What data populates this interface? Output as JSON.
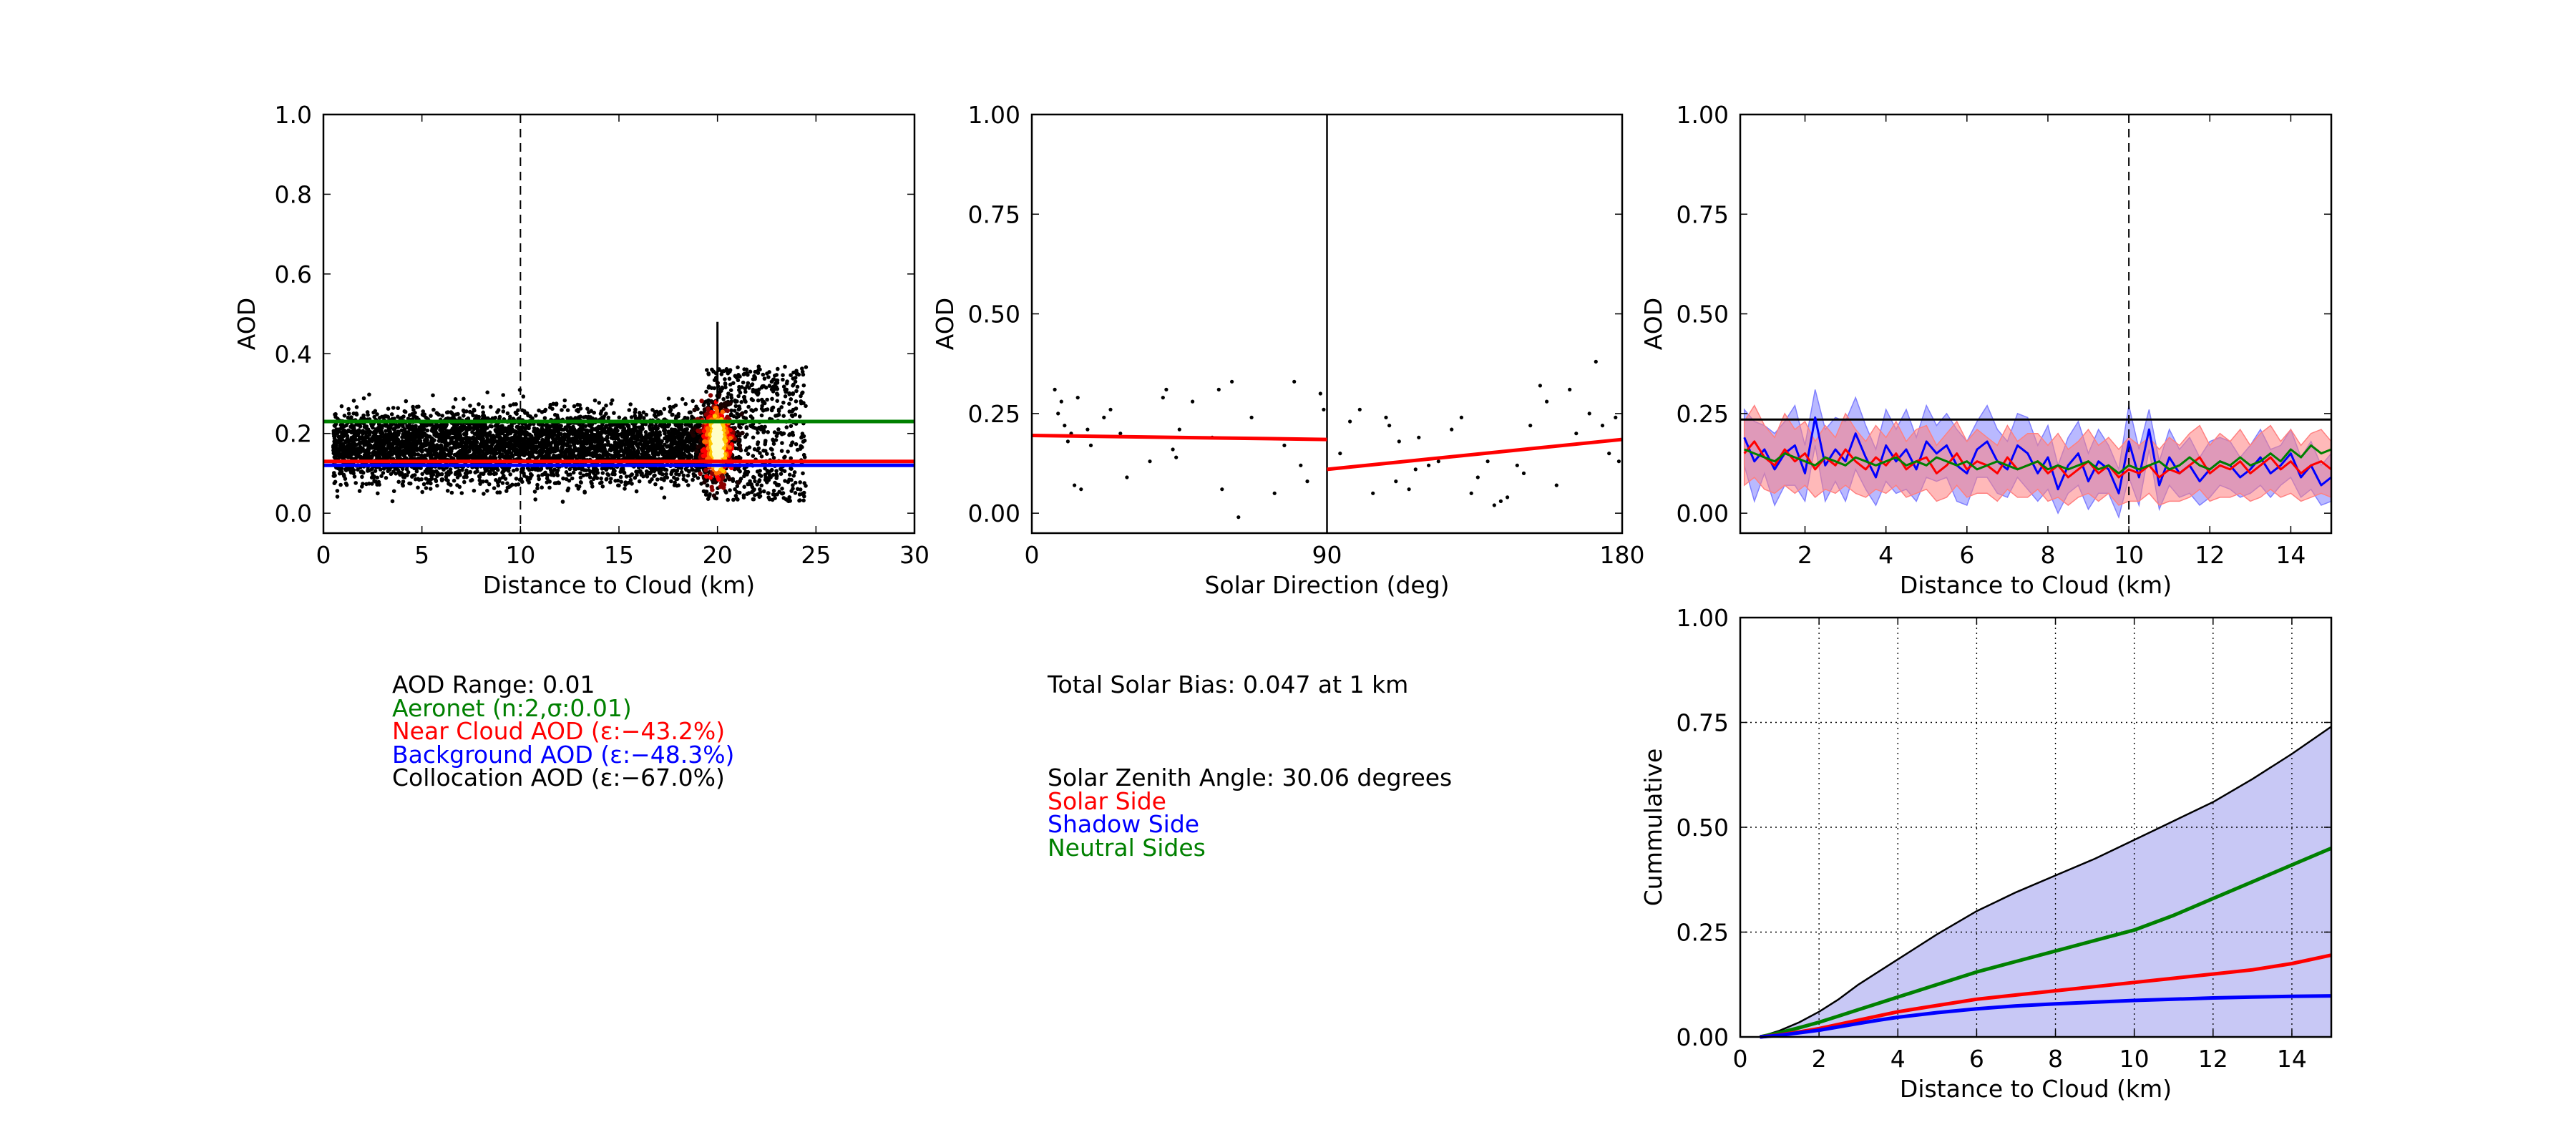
{
  "colors": {
    "black": "#000000",
    "green": "#008000",
    "red": "#ff0000",
    "blue": "#0000ff",
    "red_fill": "#ff8080",
    "blue_fill": "#8080ff",
    "cumulative_fill": "#c8c8f5"
  },
  "chart_data": [
    {
      "id": "scatter",
      "type": "scatter",
      "title": "",
      "xlabel": "Distance to Cloud (km)",
      "ylabel": "AOD",
      "xlim": [
        0,
        30
      ],
      "ylim": [
        -0.05,
        1.0
      ],
      "xticks": [
        "0",
        "5",
        "10",
        "15",
        "20",
        "25",
        "30"
      ],
      "yticks": [
        "0.0",
        "0.2",
        "0.4",
        "0.6",
        "0.8",
        "1.0"
      ],
      "grid": false,
      "vertical_dashed_line": 10,
      "horizontal_lines": [
        {
          "name": "Aeronet",
          "color": "#008000",
          "y": 0.23
        },
        {
          "name": "Near Cloud AOD",
          "color": "#ff0000",
          "y": 0.13
        },
        {
          "name": "Background AOD",
          "color": "#0000ff",
          "y": 0.12
        }
      ],
      "point_cloud": {
        "x_range": [
          0.5,
          24.5
        ],
        "y_range": [
          -0.05,
          0.47
        ],
        "y_center": 0.17,
        "dense_x": 20,
        "dense_y": [
          0.05,
          0.3
        ],
        "spike_x": 20,
        "spike_y": [
          0.28,
          0.48
        ],
        "approx_points": 4500
      }
    },
    {
      "id": "solar",
      "type": "scatter",
      "title": "",
      "xlabel": "Solar Direction (deg)",
      "ylabel": "AOD",
      "xlim": [
        0,
        180
      ],
      "ylim": [
        -0.05,
        1.0
      ],
      "xticks": [
        "0",
        "90",
        "180"
      ],
      "yticks": [
        "0.00",
        "0.25",
        "0.50",
        "0.75",
        "1.00"
      ],
      "grid": false,
      "vertical_line": 90,
      "points": [
        [
          7,
          0.31
        ],
        [
          8,
          0.25
        ],
        [
          9,
          0.28
        ],
        [
          10,
          0.22
        ],
        [
          11,
          0.18
        ],
        [
          12,
          0.2
        ],
        [
          13,
          0.07
        ],
        [
          14,
          0.29
        ],
        [
          15,
          0.06
        ],
        [
          17,
          0.21
        ],
        [
          18,
          0.17
        ],
        [
          22,
          0.24
        ],
        [
          24,
          0.26
        ],
        [
          27,
          0.2
        ],
        [
          29,
          0.09
        ],
        [
          36,
          0.13
        ],
        [
          40,
          0.29
        ],
        [
          41,
          0.31
        ],
        [
          43,
          0.16
        ],
        [
          44,
          0.14
        ],
        [
          45,
          0.21
        ],
        [
          49,
          0.28
        ],
        [
          55,
          0.19
        ],
        [
          57,
          0.31
        ],
        [
          58,
          0.06
        ],
        [
          61,
          0.33
        ],
        [
          63,
          -0.01
        ],
        [
          67,
          0.24
        ],
        [
          74,
          0.05
        ],
        [
          77,
          0.17
        ],
        [
          80,
          0.33
        ],
        [
          82,
          0.12
        ],
        [
          84,
          0.08
        ],
        [
          88,
          0.3
        ],
        [
          89,
          0.26
        ],
        [
          94,
          0.15
        ],
        [
          97,
          0.23
        ],
        [
          100,
          0.26
        ],
        [
          104,
          0.05
        ],
        [
          108,
          0.24
        ],
        [
          109,
          0.22
        ],
        [
          111,
          0.08
        ],
        [
          112,
          0.18
        ],
        [
          115,
          0.06
        ],
        [
          117,
          0.11
        ],
        [
          118,
          0.19
        ],
        [
          121,
          0.12
        ],
        [
          124,
          0.13
        ],
        [
          128,
          0.21
        ],
        [
          131,
          0.24
        ],
        [
          134,
          0.05
        ],
        [
          136,
          0.09
        ],
        [
          139,
          0.13
        ],
        [
          141,
          0.02
        ],
        [
          143,
          0.03
        ],
        [
          145,
          0.04
        ],
        [
          148,
          0.12
        ],
        [
          150,
          0.1
        ],
        [
          152,
          0.22
        ],
        [
          155,
          0.32
        ],
        [
          157,
          0.28
        ],
        [
          160,
          0.07
        ],
        [
          164,
          0.31
        ],
        [
          166,
          0.2
        ],
        [
          170,
          0.25
        ],
        [
          172,
          0.38
        ],
        [
          174,
          0.22
        ],
        [
          176,
          0.15
        ],
        [
          178,
          0.24
        ],
        [
          179,
          0.13
        ]
      ],
      "trend_lines": [
        {
          "color": "#ff0000",
          "x": [
            0,
            90
          ],
          "y": [
            0.195,
            0.185
          ]
        },
        {
          "color": "#ff0000",
          "x": [
            90,
            180
          ],
          "y": [
            0.11,
            0.185
          ]
        }
      ]
    },
    {
      "id": "profile",
      "type": "line",
      "title": "",
      "xlabel": "Distance to Cloud (km)",
      "ylabel": "AOD",
      "xlim": [
        0.4,
        15
      ],
      "ylim": [
        -0.05,
        1.0
      ],
      "xticks": [
        "2",
        "4",
        "6",
        "8",
        "10",
        "12",
        "14"
      ],
      "yticks": [
        "0.00",
        "0.25",
        "0.50",
        "0.75",
        "1.00"
      ],
      "grid": false,
      "vertical_dashed_line": 10,
      "horizontal_line": {
        "color": "#000000",
        "y": 0.235
      },
      "x": [
        0.5,
        0.75,
        1.0,
        1.25,
        1.5,
        1.75,
        2.0,
        2.25,
        2.5,
        2.75,
        3.0,
        3.25,
        3.5,
        3.75,
        4.0,
        4.25,
        4.5,
        4.75,
        5.0,
        5.25,
        5.5,
        5.75,
        6.0,
        6.25,
        6.5,
        6.75,
        7.0,
        7.25,
        7.5,
        7.75,
        8.0,
        8.25,
        8.5,
        8.75,
        9.0,
        9.25,
        9.5,
        9.75,
        10.0,
        10.25,
        10.5,
        10.75,
        11.0,
        11.25,
        11.5,
        11.75,
        12.0,
        12.25,
        12.5,
        12.75,
        13.0,
        13.25,
        13.5,
        13.75,
        14.0,
        14.25,
        14.5,
        14.75,
        15.0
      ],
      "series": [
        {
          "name": "",
          "color": "#0000ff",
          "values": [
            0.19,
            0.13,
            0.16,
            0.11,
            0.15,
            0.17,
            0.1,
            0.24,
            0.12,
            0.16,
            0.13,
            0.2,
            0.14,
            0.09,
            0.17,
            0.13,
            0.16,
            0.11,
            0.18,
            0.15,
            0.17,
            0.12,
            0.1,
            0.16,
            0.18,
            0.13,
            0.11,
            0.17,
            0.15,
            0.1,
            0.14,
            0.06,
            0.12,
            0.15,
            0.08,
            0.13,
            0.11,
            0.05,
            0.18,
            0.09,
            0.21,
            0.07,
            0.14,
            0.1,
            0.12,
            0.08,
            0.11,
            0.13,
            0.12,
            0.09,
            0.11,
            0.14,
            0.1,
            0.12,
            0.15,
            0.09,
            0.12,
            0.07,
            0.09
          ],
          "band": [
            0.07,
            0.1,
            0.06,
            0.09,
            0.08,
            0.1,
            0.07,
            0.07,
            0.09,
            0.08,
            0.1,
            0.09,
            0.08,
            0.07,
            0.09,
            0.08,
            0.1,
            0.08,
            0.09,
            0.07,
            0.08,
            0.09,
            0.08,
            0.07,
            0.09,
            0.08,
            0.07,
            0.08,
            0.09,
            0.07,
            0.08,
            0.06,
            0.07,
            0.08,
            0.07,
            0.08,
            0.06,
            0.06,
            0.09,
            0.07,
            0.05,
            0.06,
            0.07,
            0.06,
            0.07,
            0.06,
            0.07,
            0.06,
            0.06,
            0.05,
            0.06,
            0.07,
            0.06,
            0.05,
            0.06,
            0.05,
            0.06,
            0.05,
            0.06
          ]
        },
        {
          "name": "",
          "color": "#ff0000",
          "values": [
            0.15,
            0.18,
            0.14,
            0.12,
            0.16,
            0.13,
            0.15,
            0.11,
            0.14,
            0.12,
            0.16,
            0.13,
            0.11,
            0.14,
            0.12,
            0.15,
            0.11,
            0.13,
            0.14,
            0.1,
            0.12,
            0.15,
            0.11,
            0.13,
            0.12,
            0.1,
            0.14,
            0.11,
            0.12,
            0.13,
            0.1,
            0.12,
            0.09,
            0.11,
            0.13,
            0.1,
            0.12,
            0.09,
            0.11,
            0.1,
            0.12,
            0.09,
            0.11,
            0.1,
            0.12,
            0.14,
            0.1,
            0.12,
            0.11,
            0.13,
            0.1,
            0.12,
            0.14,
            0.11,
            0.13,
            0.1,
            0.12,
            0.13,
            0.11
          ],
          "band": [
            0.08,
            0.09,
            0.08,
            0.07,
            0.09,
            0.08,
            0.08,
            0.07,
            0.08,
            0.07,
            0.09,
            0.08,
            0.07,
            0.08,
            0.07,
            0.08,
            0.07,
            0.08,
            0.08,
            0.07,
            0.08,
            0.08,
            0.07,
            0.08,
            0.07,
            0.07,
            0.08,
            0.07,
            0.08,
            0.07,
            0.07,
            0.08,
            0.07,
            0.07,
            0.08,
            0.07,
            0.07,
            0.07,
            0.08,
            0.07,
            0.07,
            0.07,
            0.08,
            0.07,
            0.08,
            0.08,
            0.07,
            0.08,
            0.07,
            0.08,
            0.07,
            0.08,
            0.08,
            0.07,
            0.08,
            0.07,
            0.08,
            0.08,
            0.07
          ]
        },
        {
          "name": "",
          "color": "#008000",
          "values": [
            0.16,
            0.15,
            0.14,
            0.13,
            0.15,
            0.14,
            0.13,
            0.12,
            0.14,
            0.13,
            0.12,
            0.14,
            0.13,
            0.12,
            0.13,
            0.14,
            0.12,
            0.13,
            0.12,
            0.14,
            0.13,
            0.12,
            0.13,
            0.11,
            0.12,
            0.13,
            0.12,
            0.11,
            0.12,
            0.13,
            0.11,
            0.12,
            0.11,
            0.12,
            0.13,
            0.11,
            0.12,
            0.1,
            0.12,
            0.11,
            0.12,
            0.13,
            0.11,
            0.12,
            0.14,
            0.12,
            0.11,
            0.13,
            0.12,
            0.14,
            0.12,
            0.13,
            0.15,
            0.13,
            0.16,
            0.14,
            0.17,
            0.15,
            0.16
          ]
        }
      ]
    },
    {
      "id": "cumulative",
      "type": "area",
      "title": "",
      "xlabel": "Distance to Cloud (km)",
      "ylabel": "Cummulative",
      "xlim": [
        0,
        15
      ],
      "ylim": [
        0,
        1.0
      ],
      "xticks": [
        "0",
        "2",
        "4",
        "6",
        "8",
        "10",
        "12",
        "14"
      ],
      "yticks": [
        "0.00",
        "0.25",
        "0.50",
        "0.75",
        "1.00"
      ],
      "grid": true,
      "x": [
        0.5,
        1,
        1.5,
        2,
        2.5,
        3,
        3.5,
        4,
        5,
        6,
        7,
        8,
        9,
        10,
        11,
        12,
        13,
        14,
        15
      ],
      "series": [
        {
          "name": "",
          "color": "#000000",
          "filled": true,
          "values": [
            0.0,
            0.015,
            0.035,
            0.06,
            0.09,
            0.125,
            0.155,
            0.185,
            0.245,
            0.3,
            0.345,
            0.385,
            0.425,
            0.47,
            0.515,
            0.56,
            0.615,
            0.675,
            0.74
          ]
        },
        {
          "name": "",
          "color": "#008000",
          "values": [
            0.0,
            0.01,
            0.022,
            0.035,
            0.05,
            0.065,
            0.08,
            0.095,
            0.125,
            0.155,
            0.18,
            0.205,
            0.23,
            0.255,
            0.29,
            0.33,
            0.37,
            0.41,
            0.45
          ]
        },
        {
          "name": "",
          "color": "#ff0000",
          "values": [
            0.0,
            0.005,
            0.012,
            0.02,
            0.03,
            0.04,
            0.05,
            0.06,
            0.075,
            0.09,
            0.1,
            0.11,
            0.12,
            0.13,
            0.14,
            0.15,
            0.16,
            0.175,
            0.195
          ]
        },
        {
          "name": "",
          "color": "#0000ff",
          "values": [
            0.0,
            0.004,
            0.01,
            0.016,
            0.024,
            0.032,
            0.04,
            0.047,
            0.058,
            0.067,
            0.074,
            0.079,
            0.083,
            0.087,
            0.09,
            0.093,
            0.095,
            0.097,
            0.098
          ]
        }
      ]
    }
  ],
  "text_panel_left": {
    "range": "AOD Range: 0.01",
    "aeronet": "Aeronet (n:2,σ:0.01)",
    "near": "Near Cloud AOD (ε:−43.2%)",
    "background": "Background AOD (ε:−48.3%)",
    "collocation": "Collocation AOD (ε:−67.0%)"
  },
  "text_panel_mid": {
    "bias": "Total Solar Bias: 0.047 at 1 km",
    "zenith": "Solar Zenith Angle: 30.06 degrees",
    "solar_side": "Solar Side",
    "shadow_side": "Shadow Side",
    "neutral_sides": "Neutral Sides"
  }
}
